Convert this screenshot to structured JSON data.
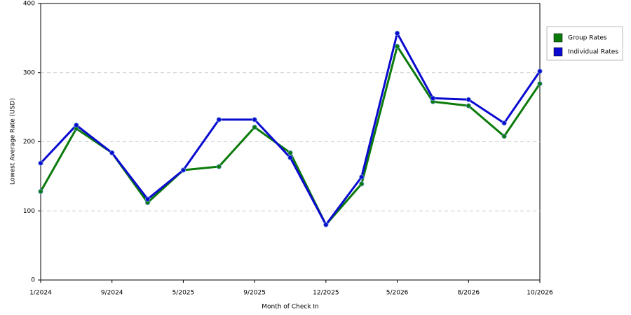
{
  "chart_data": {
    "type": "line",
    "x_label": "Month of Check In",
    "y_label": "Lowest Average Rate (USD)",
    "categories": [
      "1/2024",
      null,
      "9/2024",
      null,
      "5/2025",
      null,
      "9/2025",
      null,
      "12/2025",
      null,
      "5/2026",
      null,
      "8/2026",
      null,
      "10/2026"
    ],
    "series": [
      {
        "name": "Group Rates",
        "color": "#0a7a0a",
        "values": [
          128,
          219,
          184,
          112,
          159,
          164,
          221,
          184,
          80,
          139,
          338,
          258,
          252,
          208,
          284
        ]
      },
      {
        "name": "Individual Rates",
        "color": "#0a0ad0",
        "values": [
          169,
          224,
          184,
          117,
          159,
          232,
          232,
          177,
          80,
          149,
          357,
          263,
          261,
          227,
          302
        ]
      }
    ],
    "ylim": [
      0,
      400
    ],
    "yticks": [
      0,
      100,
      200,
      300,
      400
    ],
    "grid": true,
    "legend": "right"
  }
}
